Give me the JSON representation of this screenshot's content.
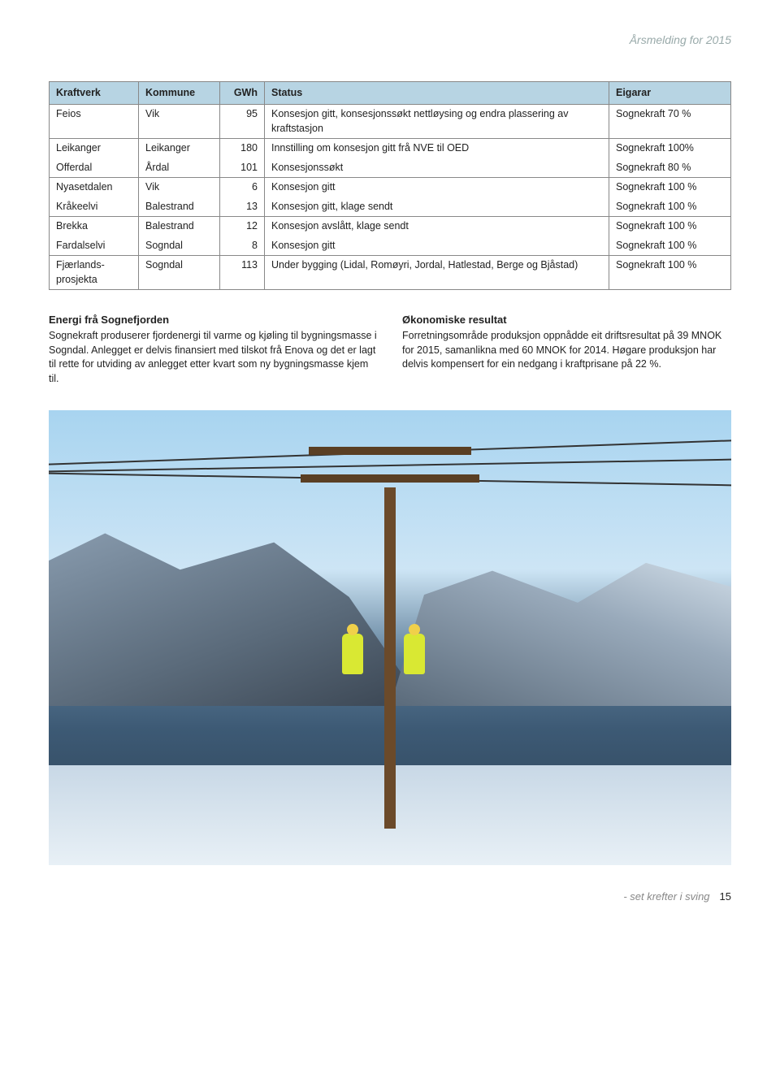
{
  "header_title": "Årsmelding for 2015",
  "table": {
    "header_bg": "#b7d4e3",
    "columns": [
      "Kraftverk",
      "Kommune",
      "GWh",
      "Status",
      "Eigarar"
    ],
    "groups": [
      [
        {
          "kraftverk": "Feios",
          "kommune": "Vik",
          "gwh": "95",
          "status": "Konsesjon gitt, konsesjonssøkt nettløysing og endra plassering av kraftstasjon",
          "eigarar": "Sognekraft 70 %"
        }
      ],
      [
        {
          "kraftverk": "Leikanger",
          "kommune": "Leikanger",
          "gwh": "180",
          "status": "Innstilling om konsesjon gitt frå NVE til OED",
          "eigarar": "Sognekraft 100%"
        },
        {
          "kraftverk": "Offerdal",
          "kommune": "Årdal",
          "gwh": "101",
          "status": "Konsesjonssøkt",
          "eigarar": "Sognekraft 80 %"
        }
      ],
      [
        {
          "kraftverk": "Nyasetdalen",
          "kommune": "Vik",
          "gwh": "6",
          "status": "Konsesjon gitt",
          "eigarar": "Sognekraft 100 %"
        },
        {
          "kraftverk": "Kråkeelvi",
          "kommune": "Balestrand",
          "gwh": "13",
          "status": "Konsesjon gitt, klage sendt",
          "eigarar": "Sognekraft 100 %"
        }
      ],
      [
        {
          "kraftverk": "Brekka",
          "kommune": "Balestrand",
          "gwh": "12",
          "status": "Konsesjon avslått, klage sendt",
          "eigarar": "Sognekraft 100 %"
        },
        {
          "kraftverk": "Fardalselvi",
          "kommune": "Sogndal",
          "gwh": "8",
          "status": "Konsesjon gitt",
          "eigarar": "Sognekraft 100 %"
        }
      ],
      [
        {
          "kraftverk": "Fjærlands-prosjekta",
          "kommune": "Sogndal",
          "gwh": "113",
          "status": "Under bygging (Lidal, Romøyri, Jordal, Hatlestad, Berge og Bjåstad)",
          "eigarar": "Sognekraft 100 %"
        }
      ]
    ]
  },
  "left_block": {
    "heading": "Energi frå Sognefjorden",
    "body": "Sognekraft produserer fjordenergi til varme og kjøling til bygningsmasse i Sogndal. Anlegget er delvis finansiert med tilskot frå Enova og det er lagt til rette for utviding av anlegget etter kvart som ny bygningsmasse kjem til."
  },
  "right_block": {
    "heading": "Økonomiske resultat",
    "body": "Forretningsområde produksjon oppnådde eit driftsresultat på 39 MNOK for 2015, samanlikna med 60 MNOK for 2014. Høgare produksjon har delvis kompensert for ein nedgang i kraftprisane på 22 %."
  },
  "photo": {
    "alt": "Two line workers in hi-vis clothing on a wooden power pole, fjord and snowy mountains behind",
    "sky_color": "#a8d4f0",
    "water_color": "#2a3d4f",
    "snow_color": "#e8f0f6",
    "hivis_color": "#d9e833",
    "pole_color": "#6b4a2a"
  },
  "footer": {
    "tagline": "- set krefter i sving",
    "page_number": "15"
  }
}
